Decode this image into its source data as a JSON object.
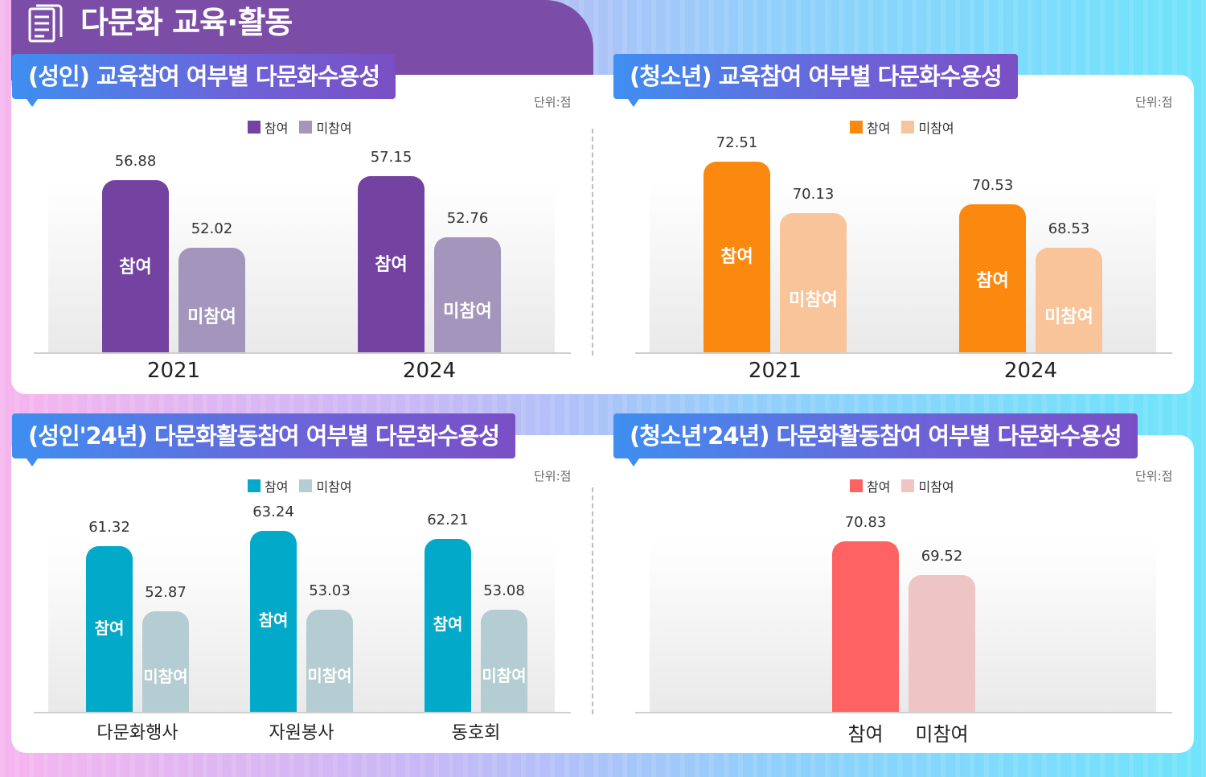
{
  "header": {
    "title": "다문화 교육·활동",
    "icon": "document-icon"
  },
  "charts": [
    {
      "title": "(성인) 교육참여 여부별 다문화수용성",
      "unit": "단위:점",
      "legend": [
        "참여",
        "미참여"
      ],
      "colors": [
        "#7442a0",
        "#a395bc"
      ],
      "bar_labels": [
        "참여",
        "미참여"
      ]
    },
    {
      "title": "(청소년) 교육참여 여부별 다문화수용성",
      "unit": "단위:점",
      "legend": [
        "참여",
        "미참여"
      ],
      "colors": [
        "#fb8910",
        "#f9c49a"
      ],
      "bar_labels": [
        "참여",
        "미참여"
      ]
    },
    {
      "title": "(성인'24년) 다문화활동참여 여부별 다문화수용성",
      "unit": "단위:점",
      "legend": [
        "참여",
        "미참여"
      ],
      "colors": [
        "#03a9c8",
        "#b4cdd3"
      ],
      "bar_labels": [
        "참여",
        "미참여"
      ]
    },
    {
      "title": "(청소년'24년) 다문화활동참여 여부별 다문화수용성",
      "unit": "단위:점",
      "legend": [
        "참여",
        "미참여"
      ],
      "colors": [
        "#ff6263",
        "#eec4c4"
      ],
      "bar_labels": []
    }
  ],
  "chart_data": [
    {
      "type": "bar",
      "title": "(성인) 교육참여 여부별 다문화수용성",
      "categories": [
        "2021",
        "2024"
      ],
      "series": [
        {
          "name": "참여",
          "values": [
            56.88,
            57.15
          ]
        },
        {
          "name": "미참여",
          "values": [
            52.02,
            52.76
          ]
        }
      ]
    },
    {
      "type": "bar",
      "title": "(청소년) 교육참여 여부별 다문화수용성",
      "categories": [
        "2021",
        "2024"
      ],
      "series": [
        {
          "name": "참여",
          "values": [
            72.51,
            70.53
          ]
        },
        {
          "name": "미참여",
          "values": [
            70.13,
            68.53
          ]
        }
      ]
    },
    {
      "type": "bar",
      "title": "(성인'24년) 다문화활동참여 여부별 다문화수용성",
      "categories": [
        "다문화행사",
        "자원봉사",
        "동호회"
      ],
      "series": [
        {
          "name": "참여",
          "values": [
            61.32,
            63.24,
            62.21
          ]
        },
        {
          "name": "미참여",
          "values": [
            52.87,
            53.03,
            53.08
          ]
        }
      ]
    },
    {
      "type": "bar",
      "title": "(청소년'24년) 다문화활동참여 여부별 다문화수용성",
      "categories": [
        "참여",
        "미참여"
      ],
      "values": [
        70.83,
        69.52
      ]
    }
  ]
}
